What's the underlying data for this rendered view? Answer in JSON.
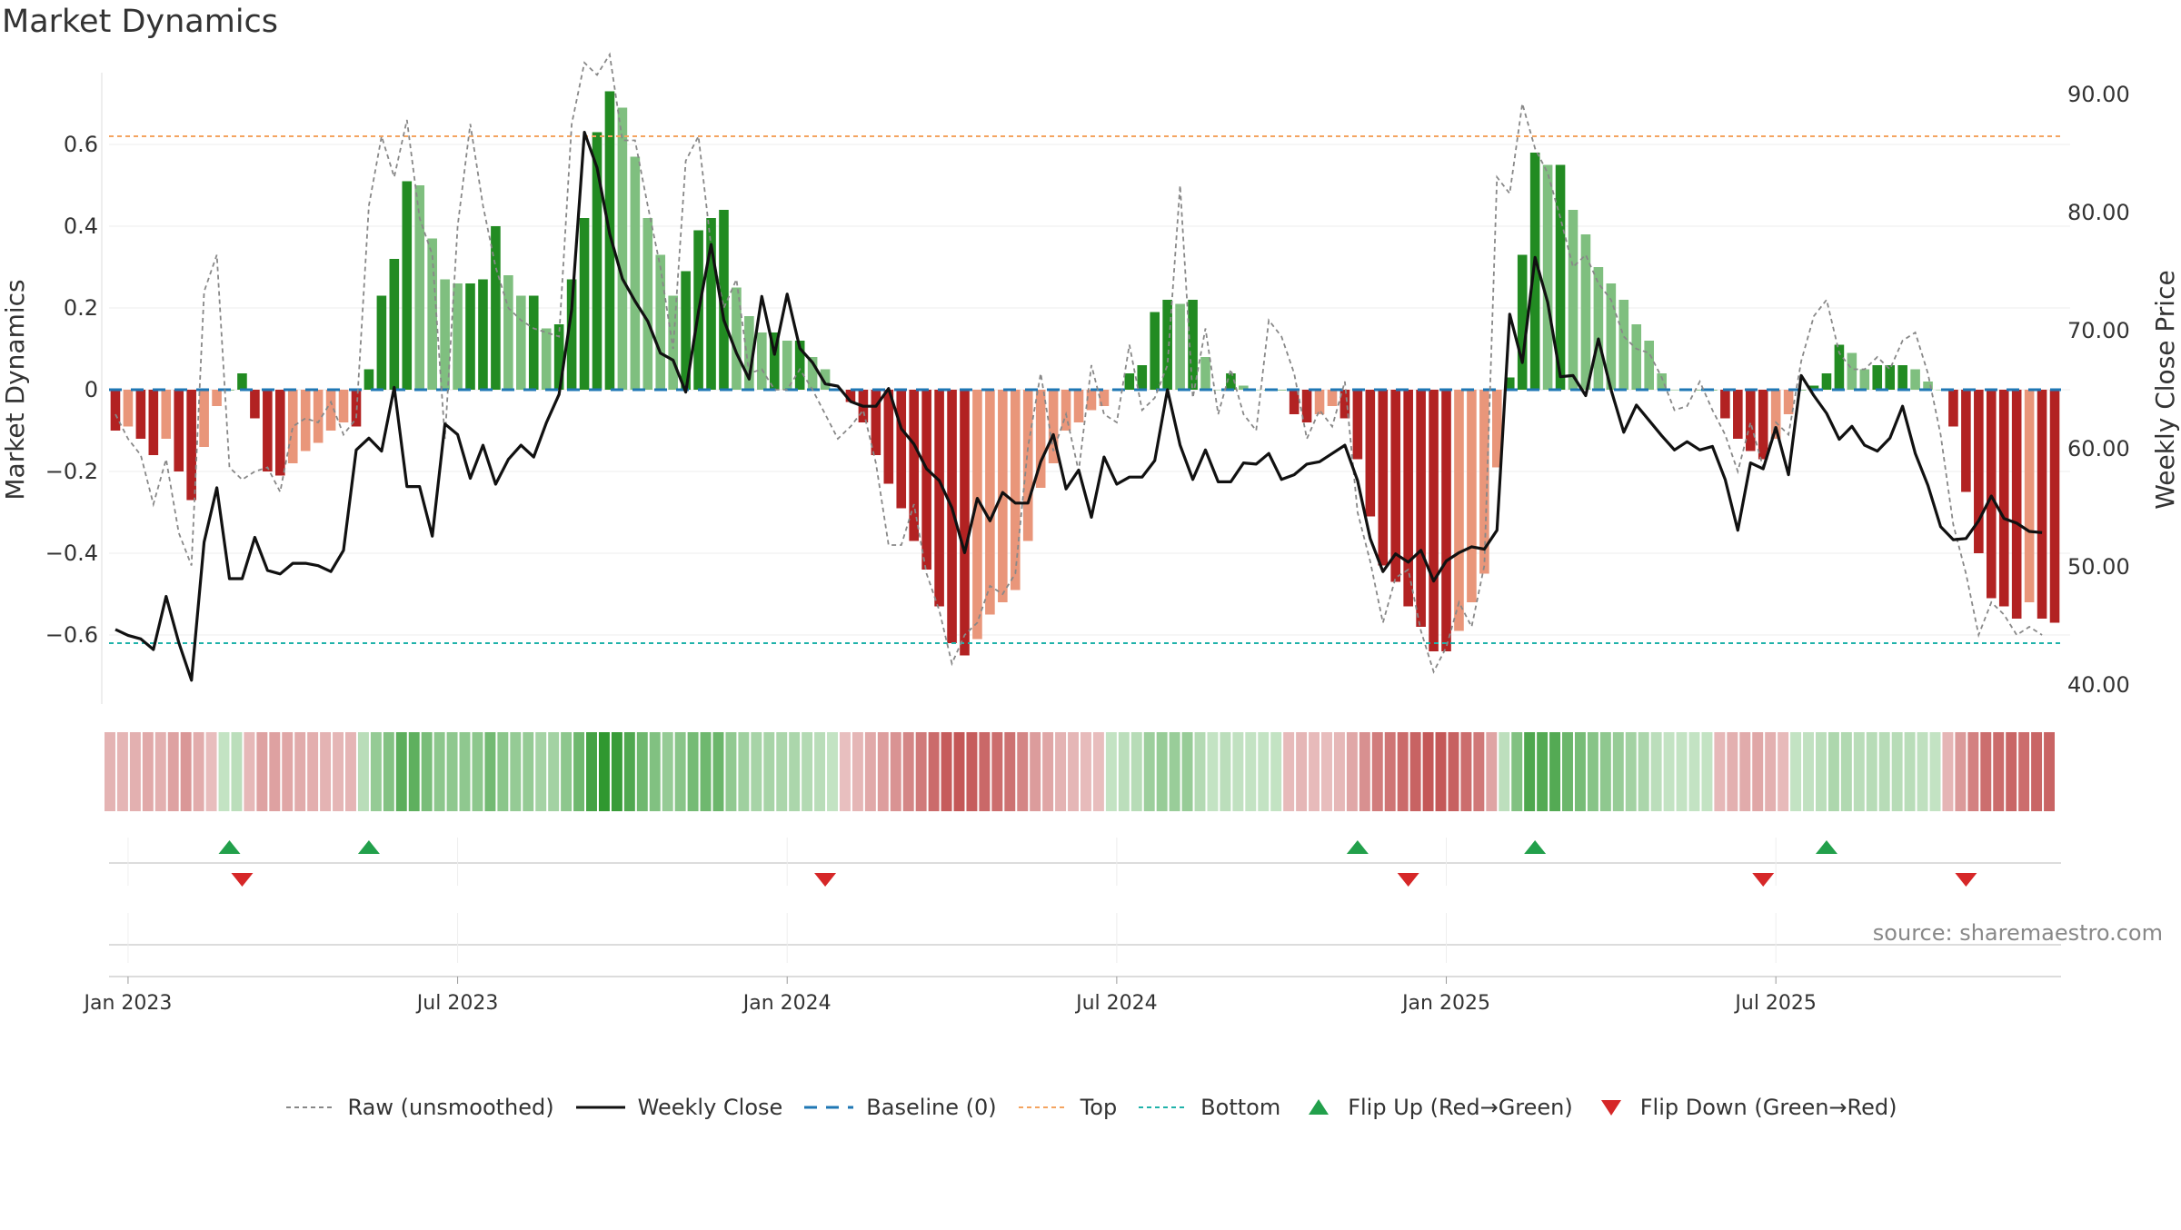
{
  "title": "Market Dynamics",
  "source": "source: sharemaestro.com",
  "chart_data": {
    "type": "bar",
    "x_tick_labels": [
      "Jan 2023",
      "Jul 2023",
      "Jan 2024",
      "Jul 2024",
      "Jan 2025",
      "Jul 2025"
    ],
    "left_axis": {
      "label": "Market Dynamics",
      "ticks": [
        "0.6",
        "0.4",
        "0.2",
        "0",
        "−0.2",
        "−0.4",
        "−0.6"
      ],
      "ylim": [
        -0.78,
        0.78
      ]
    },
    "right_axis": {
      "label": "Weekly Close Price",
      "ticks": [
        "90.00",
        "80.00",
        "70.00",
        "60.00",
        "50.00",
        "40.00"
      ],
      "ylim": [
        38,
        92
      ]
    },
    "top_level": 0.62,
    "bottom_level": -0.62,
    "baseline": 0,
    "series": [
      {
        "name": "Market Dynamics (smoothed)",
        "values": [
          -0.1,
          -0.09,
          -0.12,
          -0.16,
          -0.12,
          -0.2,
          -0.27,
          -0.14,
          -0.04,
          0.0,
          0.04,
          -0.07,
          -0.2,
          -0.21,
          -0.18,
          -0.15,
          -0.13,
          -0.1,
          -0.08,
          -0.09,
          0.05,
          0.23,
          0.32,
          0.51,
          0.5,
          0.37,
          0.27,
          0.26,
          0.26,
          0.27,
          0.4,
          0.28,
          0.23,
          0.23,
          0.15,
          0.16,
          0.27,
          0.42,
          0.63,
          0.73,
          0.69,
          0.57,
          0.42,
          0.33,
          0.23,
          0.29,
          0.39,
          0.42,
          0.44,
          0.25,
          0.18,
          0.14,
          0.14,
          0.12,
          0.12,
          0.08,
          0.05,
          0.0,
          -0.03,
          -0.08,
          -0.16,
          -0.23,
          -0.29,
          -0.37,
          -0.44,
          -0.53,
          -0.62,
          -0.65,
          -0.61,
          -0.55,
          -0.52,
          -0.49,
          -0.37,
          -0.24,
          -0.18,
          -0.1,
          -0.08,
          -0.05,
          -0.04,
          0.0,
          0.04,
          0.06,
          0.19,
          0.22,
          0.21,
          0.22,
          0.08,
          0.0,
          0.04,
          0.01,
          0.0,
          0.0,
          0.0,
          -0.06,
          -0.08,
          -0.06,
          -0.04,
          -0.07,
          -0.17,
          -0.31,
          -0.43,
          -0.47,
          -0.53,
          -0.58,
          -0.64,
          -0.64,
          -0.59,
          -0.52,
          -0.45,
          -0.19,
          0.03,
          0.33,
          0.58,
          0.55,
          0.55,
          0.44,
          0.38,
          0.3,
          0.26,
          0.22,
          0.16,
          0.12,
          0.04,
          0.0,
          0.0,
          0.0,
          0.0,
          -0.07,
          -0.12,
          -0.15,
          -0.17,
          -0.12,
          -0.06,
          0.0,
          0.01,
          0.04,
          0.11,
          0.09,
          0.05,
          0.06,
          0.06,
          0.06,
          0.05,
          0.02,
          0.0,
          -0.09,
          -0.25,
          -0.4,
          -0.51,
          -0.53,
          -0.56,
          -0.52,
          -0.56,
          -0.57
        ]
      },
      {
        "name": "Raw (unsmoothed)",
        "values": [
          -0.06,
          -0.12,
          -0.16,
          -0.28,
          -0.17,
          -0.35,
          -0.43,
          0.24,
          0.33,
          -0.19,
          -0.22,
          -0.2,
          -0.19,
          -0.25,
          -0.09,
          -0.07,
          -0.08,
          -0.03,
          -0.11,
          -0.07,
          0.45,
          0.62,
          0.52,
          0.66,
          0.42,
          0.33,
          -0.12,
          0.4,
          0.65,
          0.45,
          0.3,
          0.2,
          0.17,
          0.15,
          0.14,
          0.13,
          0.65,
          0.8,
          0.77,
          0.82,
          0.61,
          0.61,
          0.45,
          0.3,
          0.1,
          0.56,
          0.62,
          0.35,
          0.2,
          0.27,
          0.04,
          0.05,
          0.0,
          0.0,
          0.05,
          0.0,
          -0.06,
          -0.12,
          -0.09,
          -0.05,
          -0.18,
          -0.38,
          -0.38,
          -0.28,
          -0.45,
          -0.54,
          -0.67,
          -0.6,
          -0.57,
          -0.48,
          -0.5,
          -0.45,
          -0.14,
          0.04,
          -0.15,
          -0.06,
          -0.2,
          0.06,
          -0.06,
          -0.08,
          0.11,
          -0.05,
          -0.02,
          0.06,
          0.5,
          -0.02,
          0.15,
          -0.06,
          0.05,
          -0.06,
          -0.1,
          0.17,
          0.13,
          0.04,
          -0.12,
          -0.05,
          -0.09,
          0.02,
          -0.3,
          -0.42,
          -0.57,
          -0.46,
          -0.44,
          -0.59,
          -0.69,
          -0.63,
          -0.52,
          -0.58,
          -0.43,
          0.52,
          0.48,
          0.7,
          0.59,
          0.53,
          0.42,
          0.3,
          0.33,
          0.26,
          0.22,
          0.13,
          0.1,
          0.09,
          0.03,
          -0.05,
          -0.04,
          0.02,
          -0.05,
          -0.11,
          -0.2,
          -0.08,
          -0.19,
          -0.08,
          -0.11,
          0.07,
          0.18,
          0.22,
          0.09,
          0.05,
          0.05,
          0.08,
          0.05,
          0.12,
          0.14,
          0.04,
          -0.11,
          -0.33,
          -0.45,
          -0.6,
          -0.52,
          -0.55,
          -0.6,
          -0.58,
          -0.6
        ]
      },
      {
        "name": "Weekly Close",
        "values": [
          44.7,
          44.2,
          43.9,
          43.0,
          47.5,
          43.6,
          40.4,
          52.1,
          56.7,
          49.0,
          49.0,
          52.5,
          49.7,
          49.4,
          50.3,
          50.3,
          50.1,
          49.6,
          51.4,
          59.9,
          60.9,
          59.8,
          65.2,
          56.8,
          56.8,
          52.6,
          62.1,
          61.2,
          57.5,
          60.3,
          57.0,
          59.1,
          60.3,
          59.3,
          62.2,
          64.6,
          71.8,
          86.8,
          83.8,
          78.2,
          74.4,
          72.5,
          70.8,
          68.1,
          67.5,
          64.8,
          71.6,
          77.3,
          70.9,
          68.1,
          65.9,
          72.9,
          68.0,
          73.1,
          68.5,
          67.3,
          65.5,
          65.3,
          64.0,
          63.6,
          63.6,
          65.1,
          61.7,
          60.4,
          58.3,
          57.3,
          55.0,
          51.2,
          55.8,
          53.9,
          56.3,
          55.4,
          55.4,
          58.9,
          61.2,
          56.6,
          58.2,
          54.2,
          59.3,
          57.0,
          57.6,
          57.6,
          59.0,
          65.0,
          60.3,
          57.4,
          59.9,
          57.2,
          57.2,
          58.8,
          58.7,
          59.6,
          57.4,
          57.8,
          58.7,
          58.9,
          59.6,
          60.3,
          57.3,
          52.4,
          49.6,
          51.1,
          50.4,
          51.4,
          48.8,
          50.5,
          51.2,
          51.7,
          51.5,
          53.1,
          71.4,
          67.3,
          76.2,
          72.4,
          66.1,
          66.2,
          64.5,
          69.3,
          65.0,
          61.4,
          63.7,
          62.4,
          61.1,
          59.9,
          60.6,
          59.9,
          60.2,
          57.4,
          53.1,
          58.8,
          58.3,
          61.8,
          57.8,
          66.2,
          64.5,
          63.0,
          60.8,
          61.9,
          60.3,
          59.8,
          60.9,
          63.6,
          59.6,
          56.9,
          53.4,
          52.3,
          52.4,
          53.9,
          56.0,
          54.1,
          53.7,
          53.0,
          52.9
        ]
      }
    ],
    "flip_up_labels": [
      "Flip Up (Red→Green)"
    ],
    "flip_up_indices": [
      9,
      20,
      98,
      112,
      135
    ],
    "flip_down_indices": [
      10,
      56,
      102,
      130,
      146
    ],
    "legend": [
      "Raw (unsmoothed)",
      "Weekly Close",
      "Baseline (0)",
      "Top",
      "Bottom",
      "Flip Up (Red→Green)",
      "Flip Down (Green→Red)"
    ],
    "legend_position": "bottom-center",
    "colors": {
      "strong_green": "#228b22",
      "light_green": "#7fbf7f",
      "strong_red": "#b22222",
      "light_red": "#e9967a",
      "raw": "#888888",
      "close": "#111111",
      "baseline": "#1f77b4",
      "top": "#f4a460",
      "bottom": "#20b2aa",
      "flip_up": "#22a04b",
      "flip_down": "#d62728"
    },
    "grid": true
  }
}
